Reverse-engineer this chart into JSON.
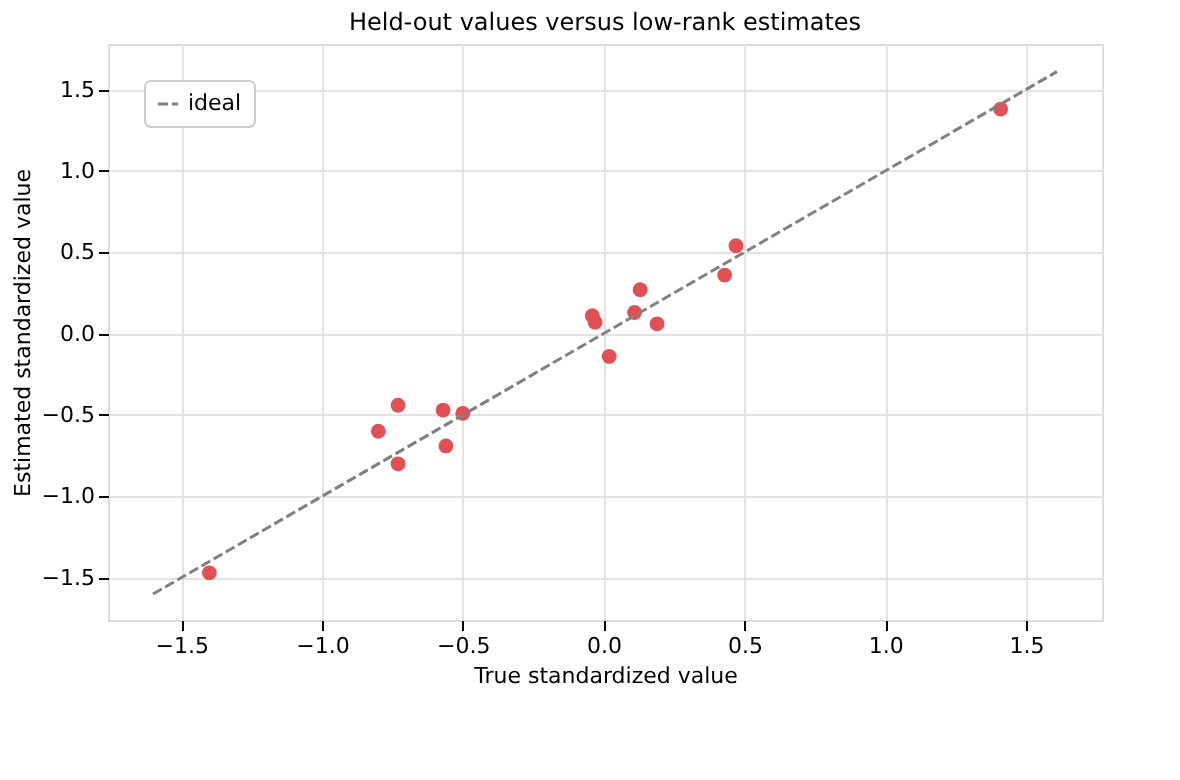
{
  "chart_data": {
    "type": "scatter",
    "title": "Held-out values versus low-rank estimates",
    "xlabel": "True standardized value",
    "ylabel": "Estimated standardized value",
    "xlim": [
      -1.76,
      1.77
    ],
    "ylim": [
      -1.76,
      1.78
    ],
    "xticks": [
      {
        "value": -1.5,
        "label": "−1.5"
      },
      {
        "value": -1.0,
        "label": "−1.0"
      },
      {
        "value": -0.5,
        "label": "−0.5"
      },
      {
        "value": 0.0,
        "label": "0.0"
      },
      {
        "value": 0.5,
        "label": "0.5"
      },
      {
        "value": 1.0,
        "label": "1.0"
      },
      {
        "value": 1.5,
        "label": "1.5"
      }
    ],
    "yticks": [
      {
        "value": -1.5,
        "label": "−1.5"
      },
      {
        "value": -1.0,
        "label": "−1.0"
      },
      {
        "value": -0.5,
        "label": "−0.5"
      },
      {
        "value": 0.0,
        "label": "0.0"
      },
      {
        "value": 0.5,
        "label": "0.5"
      },
      {
        "value": 1.0,
        "label": "1.0"
      },
      {
        "value": 1.5,
        "label": "1.5"
      }
    ],
    "grid": true,
    "legend": "top left",
    "series": [
      {
        "color": "#e05055",
        "marker": "circle",
        "x": [
          -1.4,
          -0.8,
          -0.73,
          -0.73,
          -0.57,
          -0.56,
          -0.5,
          -0.04,
          -0.03,
          0.02,
          0.11,
          0.13,
          0.19,
          0.43,
          0.47,
          1.41
        ],
        "values": [
          -1.47,
          -0.6,
          -0.44,
          -0.8,
          -0.47,
          -0.69,
          -0.49,
          0.11,
          0.07,
          -0.14,
          0.13,
          0.27,
          0.06,
          0.36,
          0.54,
          1.38
        ]
      },
      {
        "type": "line",
        "name": "ideal",
        "color": "#808080",
        "line_style": "dashed",
        "marker": "none",
        "x": [
          -1.6,
          1.61
        ],
        "values": [
          -1.6,
          1.61
        ]
      }
    ]
  }
}
